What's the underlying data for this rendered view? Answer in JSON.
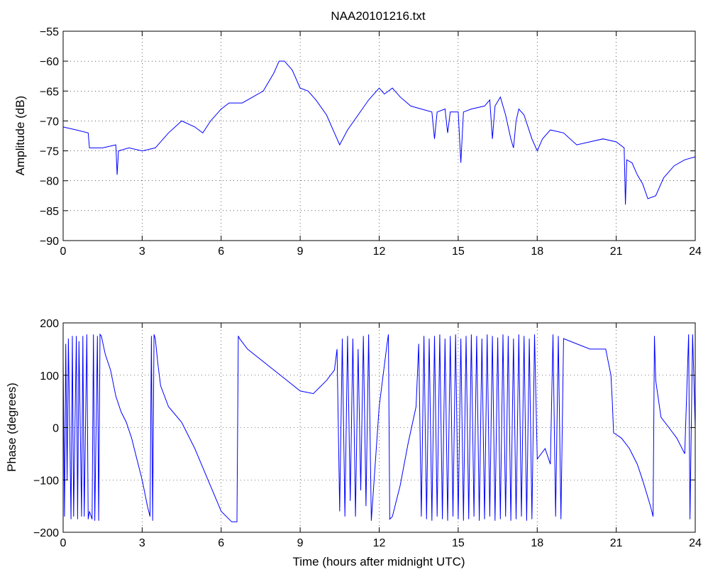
{
  "window": {
    "background": "#ffffff"
  },
  "chart_data": [
    {
      "type": "line",
      "title": "NAA20101216.txt",
      "xlabel": "",
      "ylabel": "Amplitude (dB)",
      "xlim": [
        0,
        24
      ],
      "ylim": [
        -90,
        -55
      ],
      "xticks": [
        "0",
        "3",
        "6",
        "9",
        "12",
        "15",
        "18",
        "21",
        "24"
      ],
      "yticks": [
        "−55",
        "−60",
        "−65",
        "−70",
        "−75",
        "−80",
        "−85",
        "−90"
      ],
      "grid": true,
      "color": "#0000ff",
      "series": [
        {
          "x": [
            0,
            0.5,
            0.95,
            1.0,
            1.5,
            2.0,
            2.05,
            2.1,
            2.5,
            3.0,
            3.5,
            4.0,
            4.5,
            5.0,
            5.3,
            5.6,
            6.0,
            6.3,
            6.8,
            7.2,
            7.6,
            8.0,
            8.2,
            8.4,
            8.7,
            9.0,
            9.3,
            9.6,
            10.0,
            10.3,
            10.5,
            10.8,
            11.2,
            11.6,
            12.0,
            12.2,
            12.5,
            12.8,
            13.2,
            13.6,
            14.0,
            14.1,
            14.2,
            14.5,
            14.6,
            14.7,
            15.0,
            15.1,
            15.2,
            15.5,
            16.0,
            16.2,
            16.3,
            16.4,
            16.6,
            16.8,
            17.0,
            17.1,
            17.2,
            17.3,
            17.5,
            17.8,
            18.0,
            18.2,
            18.5,
            19.0,
            19.5,
            20.0,
            20.5,
            21.0,
            21.3,
            21.35,
            21.4,
            21.6,
            21.8,
            22.0,
            22.2,
            22.5,
            22.8,
            23.2,
            23.6,
            24.0
          ],
          "y": [
            -71,
            -71.5,
            -72,
            -74.5,
            -74.5,
            -74,
            -79,
            -75,
            -74.5,
            -75,
            -74.5,
            -72,
            -70,
            -71,
            -72,
            -70,
            -68,
            -67,
            -67,
            -66,
            -65,
            -62,
            -60,
            -60,
            -61.5,
            -64.5,
            -65,
            -66.5,
            -69,
            -72,
            -74,
            -71.5,
            -69,
            -66.5,
            -64.5,
            -65.5,
            -64.5,
            -66,
            -67.5,
            -68,
            -68.5,
            -73,
            -68.5,
            -68,
            -72,
            -68.5,
            -68.5,
            -77,
            -68.5,
            -68,
            -67.5,
            -66.5,
            -73,
            -67.5,
            -66,
            -69,
            -73,
            -74.5,
            -70,
            -68,
            -69,
            -73,
            -75,
            -73,
            -71.5,
            -72,
            -74,
            -73.5,
            -73,
            -73.5,
            -74.5,
            -84,
            -76.5,
            -77,
            -79,
            -80.5,
            -83,
            -82.5,
            -79.5,
            -77.5,
            -76.5,
            -76
          ]
        }
      ]
    },
    {
      "type": "line",
      "title": "",
      "xlabel": "Time (hours after midnight UTC)",
      "ylabel": "Phase (degrees)",
      "xlim": [
        0,
        24
      ],
      "ylim": [
        -200,
        200
      ],
      "xticks": [
        "0",
        "3",
        "6",
        "9",
        "12",
        "15",
        "18",
        "21",
        "24"
      ],
      "yticks": [
        "200",
        "100",
        "0",
        "−100",
        "−200"
      ],
      "grid": true,
      "color": "#0000ff",
      "series": [
        {
          "x": [
            0,
            0.05,
            0.1,
            0.15,
            0.2,
            0.3,
            0.35,
            0.4,
            0.5,
            0.55,
            0.6,
            0.7,
            0.75,
            0.8,
            0.9,
            0.95,
            1.0,
            1.1,
            1.15,
            1.2,
            1.3,
            1.35,
            1.4,
            1.45,
            1.6,
            1.8,
            2.0,
            2.2,
            2.4,
            2.6,
            2.8,
            3.0,
            3.2,
            3.3,
            3.35,
            3.4,
            3.45,
            3.5,
            3.6,
            3.7,
            4.0,
            4.5,
            5.0,
            5.5,
            6.0,
            6.4,
            6.6,
            6.65,
            6.7,
            7.0,
            7.5,
            8.0,
            8.5,
            9.0,
            9.5,
            10.0,
            10.3,
            10.4,
            10.5,
            10.6,
            10.7,
            10.8,
            10.9,
            11.0,
            11.1,
            11.2,
            11.3,
            11.4,
            11.5,
            11.6,
            11.7,
            12.0,
            12.3,
            12.35,
            12.4,
            12.5,
            12.8,
            13.1,
            13.4,
            13.5,
            13.6,
            13.7,
            13.8,
            13.9,
            14.0,
            14.1,
            14.2,
            14.3,
            14.4,
            14.5,
            14.6,
            14.7,
            14.8,
            14.9,
            15.0,
            15.1,
            15.2,
            15.3,
            15.4,
            15.5,
            15.6,
            15.7,
            15.8,
            15.9,
            16.0,
            16.1,
            16.2,
            16.3,
            16.4,
            16.5,
            16.6,
            16.7,
            16.8,
            16.9,
            17.0,
            17.1,
            17.2,
            17.3,
            17.4,
            17.5,
            17.6,
            17.7,
            17.8,
            17.9,
            18.0,
            18.3,
            18.5,
            18.6,
            18.7,
            18.8,
            18.9,
            19.0,
            19.5,
            20.0,
            20.3,
            20.6,
            20.8,
            20.85,
            20.9,
            21.2,
            21.5,
            21.8,
            22.0,
            22.3,
            22.4,
            22.45,
            22.5,
            22.7,
            23.0,
            23.3,
            23.6,
            23.75,
            23.8,
            23.9,
            24.0
          ],
          "y": [
            130,
            -170,
            160,
            -100,
            170,
            -175,
            175,
            -170,
            175,
            -175,
            165,
            -170,
            175,
            -170,
            178,
            -175,
            -160,
            -175,
            178,
            -178,
            175,
            -178,
            178,
            175,
            140,
            110,
            60,
            30,
            10,
            -20,
            -60,
            -100,
            -150,
            -170,
            175,
            -178,
            178,
            170,
            120,
            80,
            40,
            10,
            -40,
            -100,
            -160,
            -180,
            -180,
            175,
            170,
            150,
            130,
            110,
            90,
            70,
            65,
            90,
            110,
            150,
            -160,
            170,
            -170,
            175,
            -140,
            170,
            -170,
            150,
            -120,
            175,
            -150,
            178,
            -178,
            40,
            160,
            178,
            -175,
            -170,
            -110,
            -30,
            40,
            160,
            -170,
            175,
            -175,
            170,
            -178,
            175,
            -170,
            178,
            -175,
            170,
            -178,
            175,
            -170,
            178,
            -175,
            170,
            -178,
            175,
            -175,
            178,
            -170,
            175,
            -178,
            170,
            -175,
            178,
            -170,
            175,
            -178,
            172,
            -175,
            178,
            -170,
            175,
            -178,
            170,
            -175,
            178,
            -170,
            175,
            -178,
            170,
            -175,
            178,
            -60,
            -40,
            -70,
            178,
            -170,
            175,
            -175,
            170,
            160,
            150,
            150,
            150,
            100,
            50,
            -10,
            -20,
            -40,
            -70,
            -100,
            -150,
            -170,
            175,
            90,
            20,
            0,
            -20,
            -50,
            178,
            -175,
            178,
            0
          ]
        }
      ]
    }
  ]
}
